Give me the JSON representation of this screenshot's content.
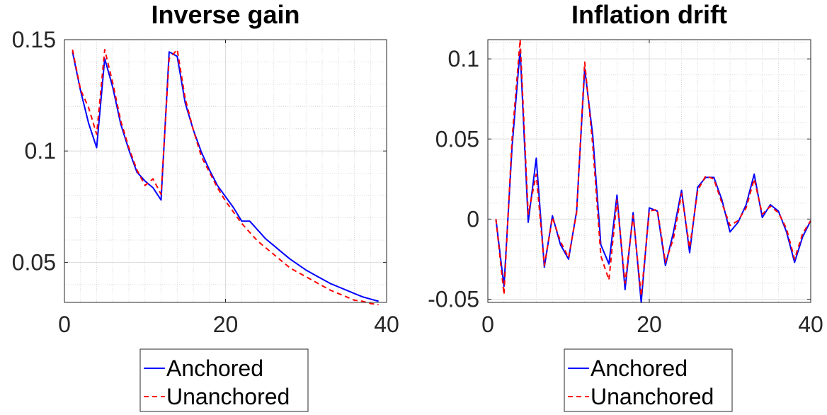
{
  "chart_data": [
    {
      "type": "line",
      "title": "Inverse gain",
      "xlabel": "",
      "ylabel": "",
      "xlim": [
        0,
        40
      ],
      "ylim": [
        0.032,
        0.15
      ],
      "xticks": [
        "0",
        "20",
        "40"
      ],
      "yticks": [
        "0.05",
        "0.1",
        "0.15"
      ],
      "grid": true,
      "legend_position": "below",
      "series": [
        {
          "name": "Anchored",
          "color": "#0000ff",
          "style": "solid",
          "x": [
            1,
            2,
            3,
            4,
            5,
            6,
            7,
            8,
            9,
            10,
            11,
            12,
            13,
            14,
            15,
            16,
            17,
            18,
            19,
            20,
            21,
            22,
            23,
            24,
            25,
            26,
            27,
            28,
            29,
            30,
            31,
            32,
            33,
            34,
            35,
            36,
            37,
            38,
            39
          ],
          "y": [
            0.1445,
            0.127,
            0.1125,
            0.1015,
            0.1415,
            0.1285,
            0.112,
            0.1005,
            0.0905,
            0.0865,
            0.0835,
            0.078,
            0.1445,
            0.1425,
            0.1215,
            0.1095,
            0.0995,
            0.0915,
            0.0845,
            0.0795,
            0.0745,
            0.0685,
            0.0685,
            0.0645,
            0.0605,
            0.0575,
            0.0545,
            0.0515,
            0.049,
            0.0465,
            0.0445,
            0.0425,
            0.0405,
            0.039,
            0.0375,
            0.036,
            0.0345,
            0.0335,
            0.0325
          ]
        },
        {
          "name": "Unanchored",
          "color": "#ff0000",
          "style": "dashed",
          "x": [
            1,
            2,
            3,
            4,
            5,
            6,
            7,
            8,
            9,
            10,
            11,
            12,
            13,
            14,
            15,
            16,
            17,
            18,
            19,
            20,
            21,
            22,
            23,
            24,
            25,
            26,
            27,
            28,
            29,
            30,
            31,
            32,
            33,
            34,
            35,
            36,
            37,
            38,
            39
          ],
          "y": [
            0.1455,
            0.1275,
            0.1195,
            0.1075,
            0.1455,
            0.1305,
            0.1135,
            0.1015,
            0.0915,
            0.0845,
            0.0875,
            0.0805,
            0.1415,
            0.1455,
            0.1235,
            0.1095,
            0.0975,
            0.0905,
            0.0835,
            0.0775,
            0.0725,
            0.0675,
            0.0635,
            0.0595,
            0.0565,
            0.0535,
            0.0505,
            0.0475,
            0.0455,
            0.0435,
            0.0415,
            0.0395,
            0.0375,
            0.036,
            0.0345,
            0.033,
            0.0325,
            0.0315,
            0.031
          ]
        }
      ]
    },
    {
      "type": "line",
      "title": "Inflation drift",
      "xlabel": "",
      "ylabel": "",
      "xlim": [
        0,
        40
      ],
      "ylim": [
        -0.052,
        0.112
      ],
      "xticks": [
        "0",
        "20",
        "40"
      ],
      "yticks": [
        "-0.05",
        "0",
        "0.05",
        "0.1"
      ],
      "grid": true,
      "legend_position": "below",
      "series": [
        {
          "name": "Anchored",
          "color": "#0000ff",
          "style": "solid",
          "x": [
            1,
            2,
            3,
            4,
            5,
            6,
            7,
            8,
            9,
            10,
            11,
            12,
            13,
            14,
            15,
            16,
            17,
            18,
            19,
            20,
            21,
            22,
            23,
            24,
            25,
            26,
            27,
            28,
            29,
            30,
            31,
            32,
            33,
            34,
            35,
            36,
            37,
            38,
            39,
            40
          ],
          "y": [
            0,
            -0.042,
            0.045,
            0.106,
            -0.002,
            0.038,
            -0.03,
            0.002,
            -0.016,
            -0.025,
            0.005,
            0.094,
            0.052,
            -0.016,
            -0.028,
            0.015,
            -0.044,
            0.004,
            -0.052,
            0.007,
            0.005,
            -0.029,
            -0.008,
            0.018,
            -0.021,
            0.02,
            0.026,
            0.026,
            0.012,
            -0.008,
            -0.002,
            0.009,
            0.028,
            0.001,
            0.009,
            0.005,
            -0.008,
            -0.027,
            -0.011,
            -0.001
          ]
        },
        {
          "name": "Unanchored",
          "color": "#ff0000",
          "style": "dashed",
          "x": [
            1,
            2,
            3,
            4,
            5,
            6,
            7,
            8,
            9,
            10,
            11,
            12,
            13,
            14,
            15,
            16,
            17,
            18,
            19,
            20,
            21,
            22,
            23,
            24,
            25,
            26,
            27,
            28,
            29,
            30,
            31,
            32,
            33,
            34,
            35,
            36,
            37,
            38,
            39,
            40
          ],
          "y": [
            0,
            -0.047,
            0.05,
            0.112,
            0.003,
            0.028,
            -0.029,
            0.001,
            -0.014,
            -0.024,
            0.004,
            0.098,
            0.046,
            -0.023,
            -0.038,
            0.012,
            -0.04,
            0.002,
            -0.048,
            0.005,
            0.006,
            -0.027,
            -0.012,
            0.016,
            -0.018,
            0.018,
            0.027,
            0.025,
            0.01,
            -0.004,
            -0.001,
            0.007,
            0.025,
            0.003,
            0.008,
            0.004,
            -0.006,
            -0.025,
            -0.009,
            -0.001
          ]
        }
      ]
    }
  ]
}
